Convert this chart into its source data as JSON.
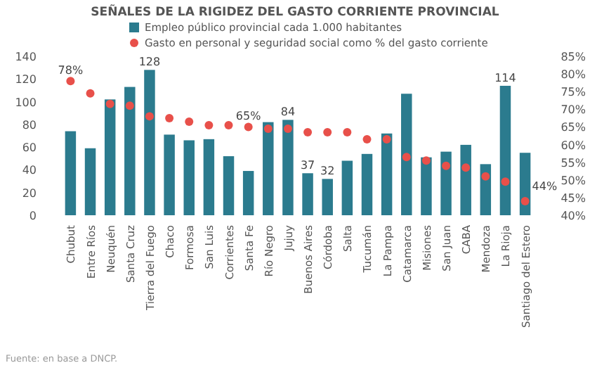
{
  "chart_data": {
    "type": "bar",
    "title": "SEÑALES DE LA RIGIDEZ DEL GASTO CORRIENTE PROVINCIAL",
    "categories": [
      "Chubut",
      "Entre Ríos",
      "Neuquén",
      "Santa Cruz",
      "Tierra del Fuego",
      "Chaco",
      "Formosa",
      "San Luis",
      "Corrientes",
      "Santa Fe",
      "Río Negro",
      "Jujuy",
      "Buenos Aires",
      "Córdoba",
      "Salta",
      "Tucumán",
      "La Pampa",
      "Catamarca",
      "Misiones",
      "San Juan",
      "CABA",
      "Mendoza",
      "La Rioja",
      "Santiago del Estero"
    ],
    "series": [
      {
        "name": "Empleo público provincial cada 1.000 habitantes",
        "type": "bar",
        "color": "#2b7b8e",
        "values": [
          74,
          59,
          102,
          113,
          128,
          71,
          66,
          67,
          52,
          39,
          82,
          84,
          37,
          32,
          48,
          54,
          72,
          107,
          51,
          56,
          62,
          45,
          114,
          55
        ],
        "value_labels": [
          null,
          null,
          null,
          null,
          "128",
          null,
          null,
          null,
          null,
          null,
          null,
          "84",
          "37",
          "32",
          null,
          null,
          null,
          null,
          null,
          null,
          null,
          null,
          "114",
          null
        ]
      },
      {
        "name": "Gasto en personal y seguridad social como % del gasto corriente",
        "type": "scatter",
        "axis": "y2",
        "color": "#e8504a",
        "marker": "circle",
        "values": [
          78,
          74.5,
          71.5,
          71,
          68,
          67.5,
          66.5,
          65.5,
          65.5,
          65,
          64.5,
          64.5,
          63.5,
          63.5,
          63.5,
          61.5,
          61.5,
          56.5,
          55.5,
          54,
          53.5,
          51,
          49.5,
          44
        ],
        "value_labels": [
          "78%",
          null,
          null,
          null,
          null,
          null,
          null,
          null,
          null,
          "65%",
          null,
          null,
          null,
          null,
          null,
          null,
          null,
          null,
          null,
          null,
          null,
          null,
          null,
          "44%"
        ]
      }
    ],
    "ylim": [
      0,
      140
    ],
    "yticks": [
      0,
      20,
      40,
      60,
      80,
      100,
      120,
      140
    ],
    "y2lim": [
      40,
      85
    ],
    "y2ticks": [
      {
        "value": 40,
        "label": "40%"
      },
      {
        "value": 45,
        "label": "45%"
      },
      {
        "value": 50,
        "label": "50%"
      },
      {
        "value": 55,
        "label": "55%"
      },
      {
        "value": 60,
        "label": "60%"
      },
      {
        "value": 65,
        "label": "65%"
      },
      {
        "value": 70,
        "label": "70%"
      },
      {
        "value": 75,
        "label": "75%"
      },
      {
        "value": 80,
        "label": "80%"
      },
      {
        "value": 85,
        "label": "85%"
      }
    ],
    "legend": "top",
    "annotations": [
      "Fuente: en base a DNCP."
    ]
  }
}
